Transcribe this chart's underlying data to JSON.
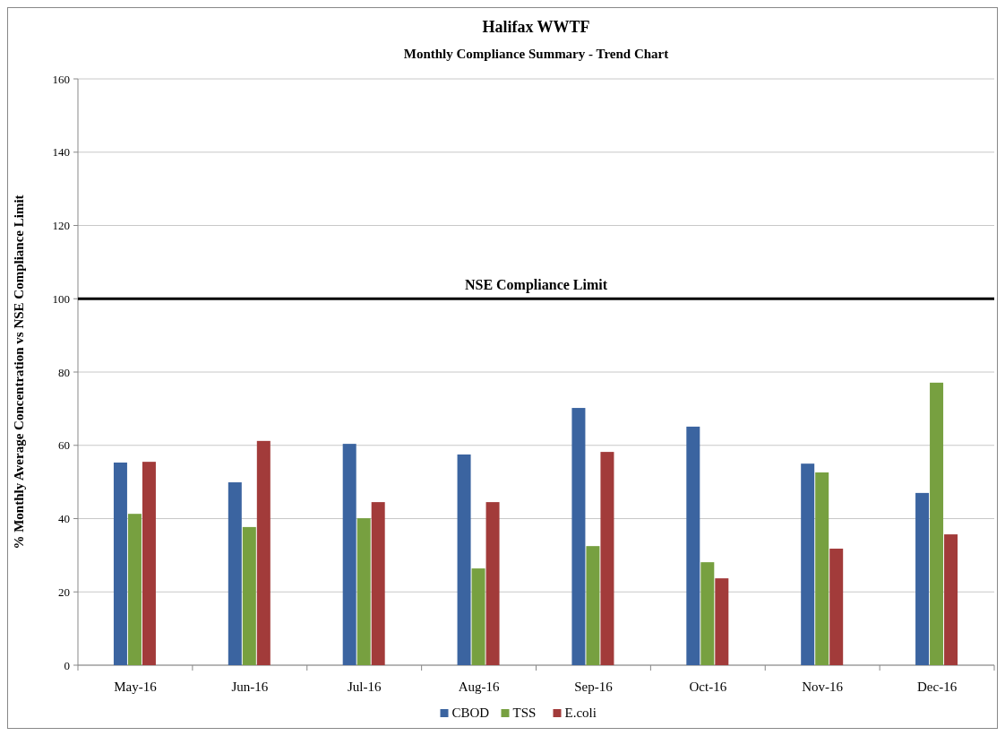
{
  "chart_data": {
    "type": "bar",
    "title": "Halifax WWTF",
    "subtitle": "Monthly Compliance Summary  - Trend Chart",
    "ylabel": "% Monthly Average Concentration  vs NSE Compliance  Limit",
    "categories": [
      "May-16",
      "Jun-16",
      "Jul-16",
      "Aug-16",
      "Sep-16",
      "Oct-16",
      "Nov-16",
      "Dec-16"
    ],
    "series": [
      {
        "name": "CBOD",
        "color": "#3b64a0",
        "values": [
          55.3,
          49.9,
          60.4,
          57.5,
          70.2,
          65.1,
          55,
          47
        ]
      },
      {
        "name": "TSS",
        "color": "#77a040",
        "values": [
          41.3,
          37.7,
          40.1,
          26.4,
          32.5,
          28.1,
          52.6,
          77.1
        ]
      },
      {
        "name": "E.coli",
        "color": "#a23b3a",
        "values": [
          55.5,
          61.2,
          44.5,
          44.5,
          58.2,
          23.7,
          31.8,
          35.7
        ]
      }
    ],
    "ylim": [
      0,
      160
    ],
    "yticks": [
      0,
      20,
      40,
      60,
      80,
      100,
      120,
      140,
      160
    ],
    "grid": "y",
    "legend": "bottom",
    "ref_lines": [
      {
        "axis": "y",
        "value": 100,
        "label": "NSE Compliance  Limit",
        "color": "#000000"
      }
    ]
  }
}
